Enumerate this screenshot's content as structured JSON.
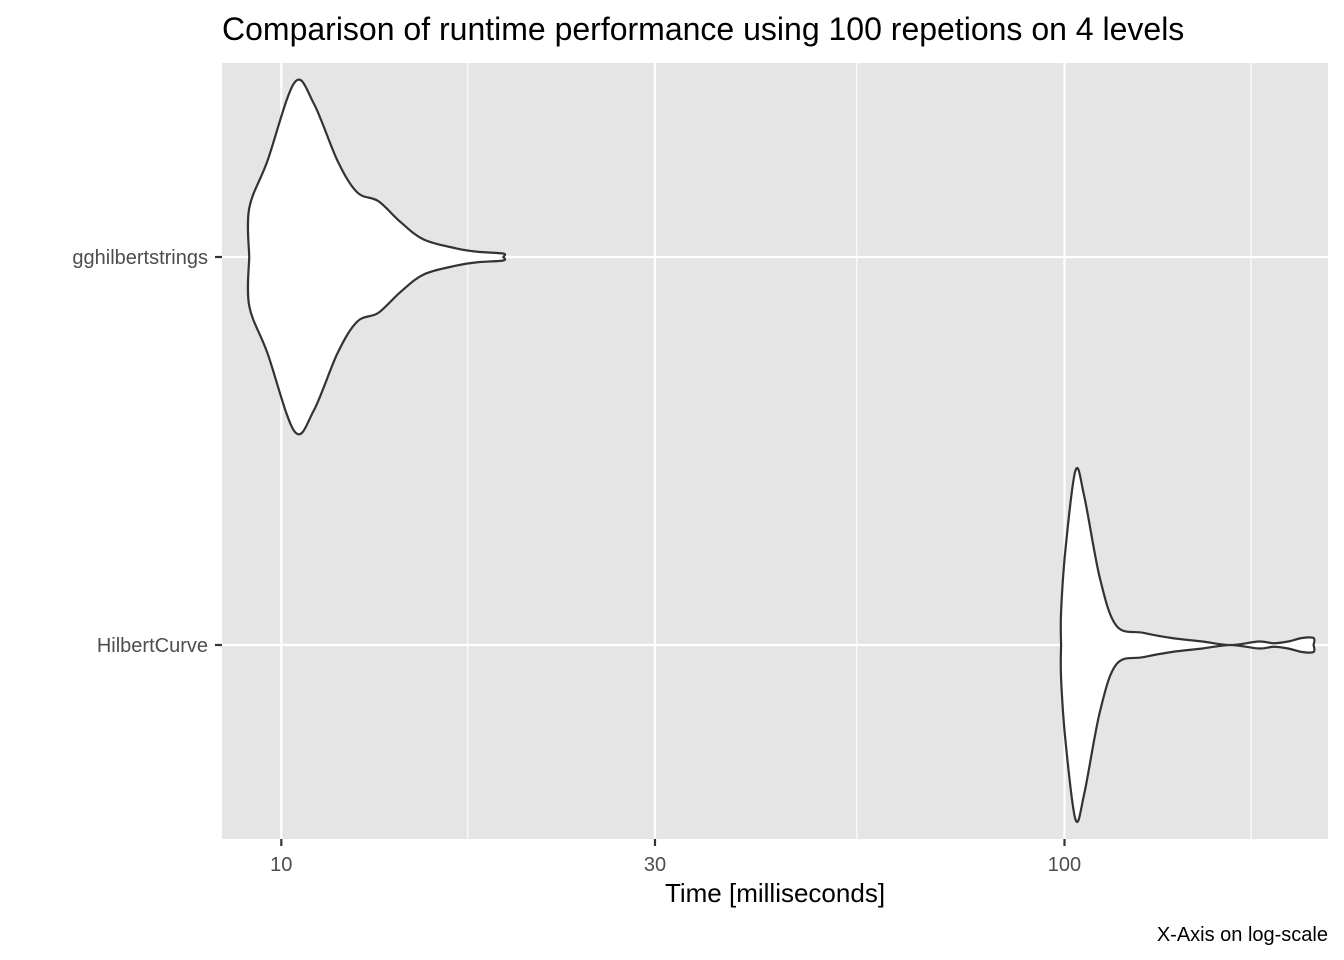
{
  "chart_data": {
    "type": "violin",
    "title": "Comparison of runtime performance using 100 repetions on 4 levels",
    "xlabel": "Time [milliseconds]",
    "ylabel": "",
    "caption": "X-Axis on log-scale",
    "x_scale": "log10",
    "xlim": [
      8.4,
      217
    ],
    "x_ticks": [
      10,
      30,
      100
    ],
    "x_tick_labels": [
      "10",
      "30",
      "100"
    ],
    "x_minor_gridlines": [
      17.3,
      54.3,
      173
    ],
    "categories": [
      "gghilbertstrings",
      "HilbertCurve"
    ],
    "grid": true,
    "legend": "none",
    "colors": {
      "panel_background": "#e5e5e5",
      "grid": "#ffffff",
      "violin_fill": "#ffffff",
      "violin_outline": "#333333",
      "tick_label": "#4d4d4d"
    },
    "series": [
      {
        "category": "gghilbertstrings",
        "density_profile": [
          {
            "x": 9.1,
            "w": 0.0
          },
          {
            "x": 9.1,
            "w": 0.28
          },
          {
            "x": 9.6,
            "w": 0.55
          },
          {
            "x": 10.4,
            "w": 1.0
          },
          {
            "x": 11.0,
            "w": 0.88
          },
          {
            "x": 11.8,
            "w": 0.55
          },
          {
            "x": 12.5,
            "w": 0.37
          },
          {
            "x": 13.3,
            "w": 0.32
          },
          {
            "x": 14.2,
            "w": 0.2
          },
          {
            "x": 15.2,
            "w": 0.1
          },
          {
            "x": 16.7,
            "w": 0.05
          },
          {
            "x": 17.8,
            "w": 0.03
          },
          {
            "x": 19.2,
            "w": 0.02
          },
          {
            "x": 19.2,
            "w": 0.0
          }
        ]
      },
      {
        "category": "HilbertCurve",
        "density_profile": [
          {
            "x": 99.0,
            "w": 0.0
          },
          {
            "x": 99.0,
            "w": 0.19
          },
          {
            "x": 100.3,
            "w": 0.55
          },
          {
            "x": 103.3,
            "w": 1.0
          },
          {
            "x": 106.0,
            "w": 0.85
          },
          {
            "x": 111.0,
            "w": 0.38
          },
          {
            "x": 116.5,
            "w": 0.11
          },
          {
            "x": 126.0,
            "w": 0.07
          },
          {
            "x": 137.0,
            "w": 0.04
          },
          {
            "x": 150.0,
            "w": 0.02
          },
          {
            "x": 163.0,
            "w": 0.0
          },
          {
            "x": 177.0,
            "w": 0.02
          },
          {
            "x": 185.0,
            "w": 0.01
          },
          {
            "x": 193.0,
            "w": 0.02
          },
          {
            "x": 201.0,
            "w": 0.04
          },
          {
            "x": 208.0,
            "w": 0.04
          },
          {
            "x": 208.0,
            "w": 0.0
          }
        ]
      }
    ]
  }
}
